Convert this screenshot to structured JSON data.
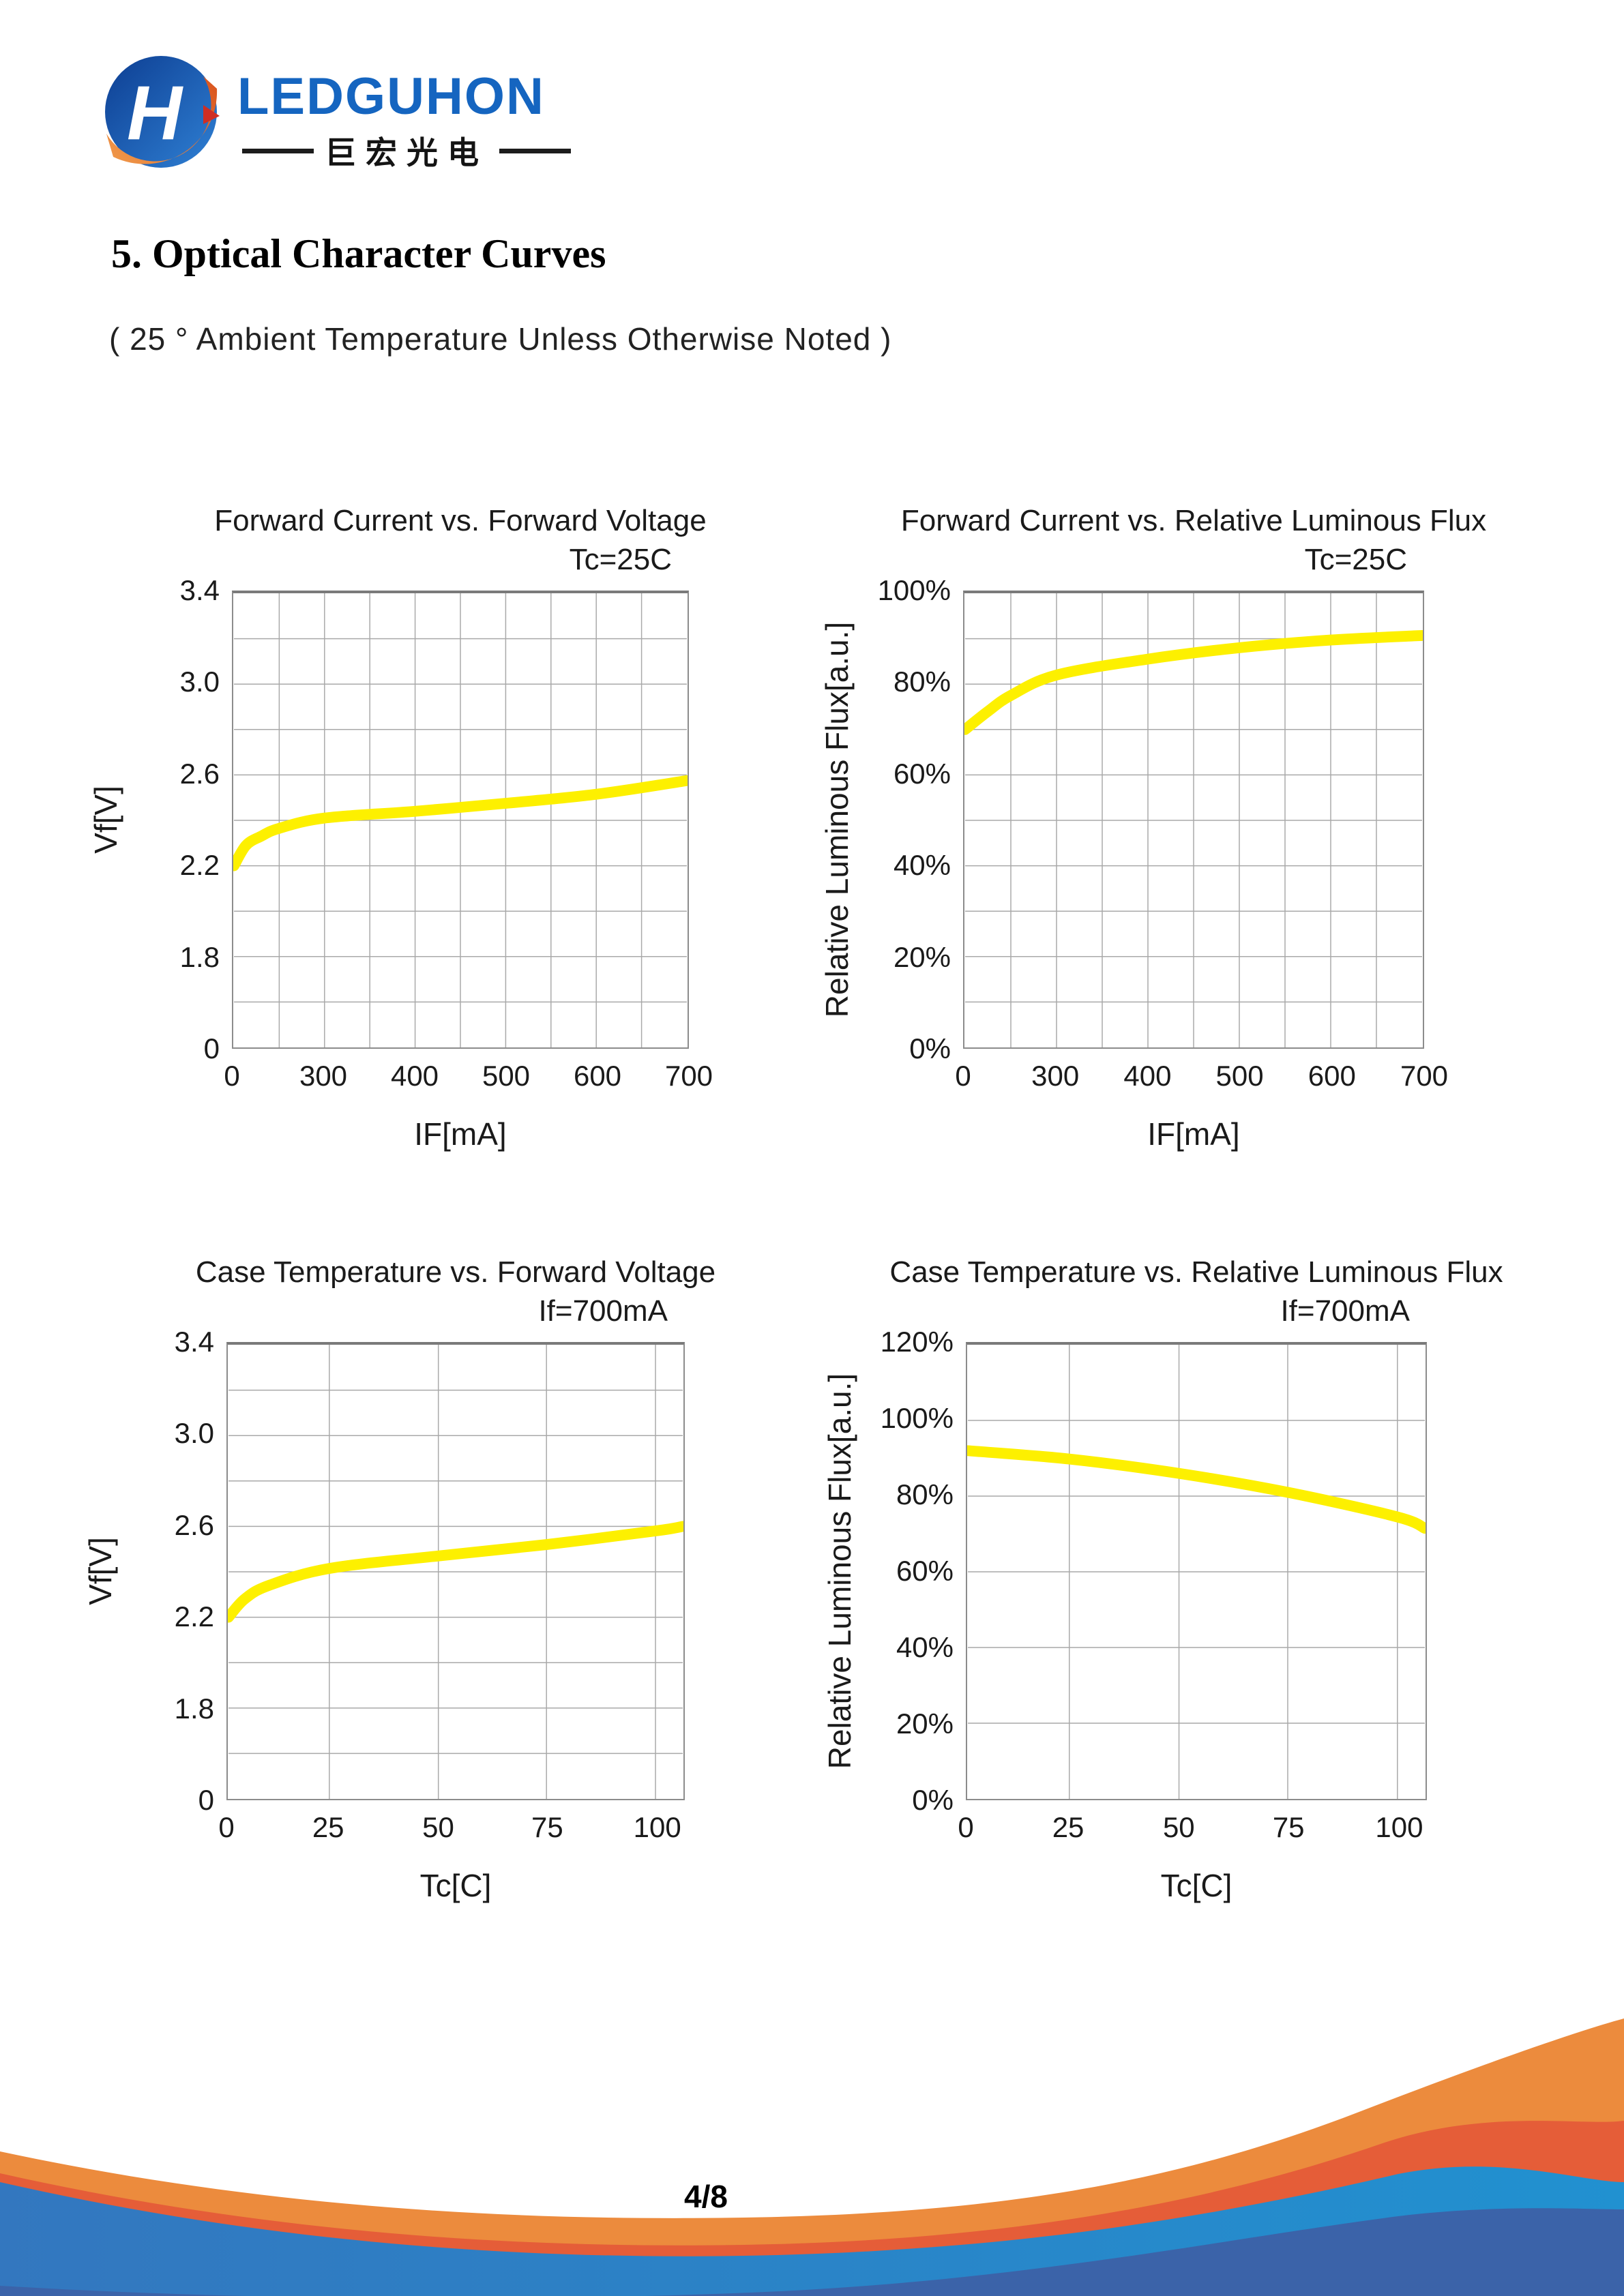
{
  "logo": {
    "brand": "LEDGUHON",
    "chinese": "巨宏光电"
  },
  "section": {
    "title_number": "5.",
    "title": " Optical Character Curves",
    "note": "( 25 °  Ambient Temperature Unless Otherwise Noted )"
  },
  "page": {
    "number_label": "4/8"
  },
  "colors": {
    "curve": "#fdf000",
    "grid": "#a9a9a9",
    "plot_border": "#7f7f7f",
    "text": "#1a1a1a",
    "brand_blue": "#1565c0",
    "logo_blue_dark": "#0d3e92",
    "logo_blue_light": "#2f80d4",
    "logo_orange_light": "#f09a4b",
    "logo_orange_dark": "#d9531e",
    "logo_red": "#cf2e24",
    "footer_orange": "#ec8b3d",
    "footer_red": "#e55d38",
    "footer_blue_left": "#3377bf",
    "footer_blue_right": "#2191d0",
    "footer_dark_blue": "#3b63a9"
  },
  "chart_data": [
    {
      "type": "line",
      "title": "Forward Current vs. Forward Voltage",
      "subtitle": "Tc=25C",
      "xlabel": "IF[mA]",
      "ylabel": "Vf[V]",
      "legend": [],
      "grid": "on",
      "x_ticks": [
        {
          "label": "0",
          "f": 0
        },
        {
          "label": "300",
          "f": 0.2
        },
        {
          "label": "400",
          "f": 0.4
        },
        {
          "label": "500",
          "f": 0.6
        },
        {
          "label": "600",
          "f": 0.8
        },
        {
          "label": "700",
          "f": 1
        }
      ],
      "y_ticks": [
        {
          "label": "3.4",
          "f": 0
        },
        {
          "label": "3.0",
          "f": 0.2
        },
        {
          "label": "2.6",
          "f": 0.4
        },
        {
          "label": "2.2",
          "f": 0.6
        },
        {
          "label": "1.8",
          "f": 0.8
        },
        {
          "label": "0",
          "f": 1
        }
      ],
      "x_grid": [
        0,
        0.1,
        0.2,
        0.3,
        0.4,
        0.5,
        0.6,
        0.7,
        0.8,
        0.9,
        1
      ],
      "y_rows": 10,
      "x_anchors": [
        [
          0,
          0
        ],
        [
          300,
          0.2
        ],
        [
          400,
          0.4
        ],
        [
          500,
          0.6
        ],
        [
          600,
          0.8
        ],
        [
          700,
          1
        ]
      ],
      "y_anchors": [
        [
          3.4,
          0
        ],
        [
          3.0,
          0.2
        ],
        [
          2.6,
          0.4
        ],
        [
          2.2,
          0.6
        ],
        [
          1.8,
          0.8
        ],
        [
          0,
          1
        ]
      ],
      "points": [
        [
          0,
          2.2
        ],
        [
          40,
          2.29
        ],
        [
          90,
          2.33
        ],
        [
          150,
          2.365
        ],
        [
          300,
          2.41
        ],
        [
          400,
          2.44
        ],
        [
          500,
          2.475
        ],
        [
          600,
          2.515
        ],
        [
          700,
          2.575
        ]
      ]
    },
    {
      "type": "line",
      "title": "Forward Current vs. Relative Luminous Flux",
      "subtitle": "Tc=25C",
      "xlabel": "IF[mA]",
      "ylabel": "Relative Luminous Flux[a.u.]",
      "legend": [],
      "grid": "on",
      "x_ticks": [
        {
          "label": "0",
          "f": 0
        },
        {
          "label": "300",
          "f": 0.2
        },
        {
          "label": "400",
          "f": 0.4
        },
        {
          "label": "500",
          "f": 0.6
        },
        {
          "label": "600",
          "f": 0.8
        },
        {
          "label": "700",
          "f": 1
        }
      ],
      "y_ticks": [
        {
          "label": "100%",
          "f": 0
        },
        {
          "label": "80%",
          "f": 0.2
        },
        {
          "label": "60%",
          "f": 0.4
        },
        {
          "label": "40%",
          "f": 0.6
        },
        {
          "label": "20%",
          "f": 0.8
        },
        {
          "label": "0%",
          "f": 1
        }
      ],
      "x_grid": [
        0,
        0.1,
        0.2,
        0.3,
        0.4,
        0.5,
        0.6,
        0.7,
        0.8,
        0.9,
        1
      ],
      "y_rows": 10,
      "x_anchors": [
        [
          0,
          0
        ],
        [
          300,
          0.2
        ],
        [
          400,
          0.4
        ],
        [
          500,
          0.6
        ],
        [
          600,
          0.8
        ],
        [
          700,
          1
        ]
      ],
      "y_anchors": [
        [
          100,
          0
        ],
        [
          0,
          1
        ]
      ],
      "points": [
        [
          0,
          70
        ],
        [
          75,
          74
        ],
        [
          150,
          77.5
        ],
        [
          300,
          82
        ],
        [
          400,
          85.5
        ],
        [
          500,
          88
        ],
        [
          600,
          89.7
        ],
        [
          700,
          90.7
        ]
      ]
    },
    {
      "type": "line",
      "title": "Case Temperature vs. Forward Voltage",
      "subtitle": "If=700mA",
      "xlabel": "Tc[C]",
      "ylabel": "Vf[V]",
      "legend": [],
      "grid": "on",
      "x_ticks": [
        {
          "label": "0",
          "f": 0
        },
        {
          "label": "25",
          "f": 0.222
        },
        {
          "label": "50",
          "f": 0.462
        },
        {
          "label": "75",
          "f": 0.7
        },
        {
          "label": "100",
          "f": 0.94
        }
      ],
      "y_ticks": [
        {
          "label": "3.4",
          "f": 0
        },
        {
          "label": "3.0",
          "f": 0.2
        },
        {
          "label": "2.6",
          "f": 0.4
        },
        {
          "label": "2.2",
          "f": 0.6
        },
        {
          "label": "1.8",
          "f": 0.8
        },
        {
          "label": "0",
          "f": 1
        }
      ],
      "x_grid": [
        0,
        0.222,
        0.462,
        0.7,
        0.94,
        1
      ],
      "y_rows": 10,
      "x_anchors": [
        [
          0,
          0
        ],
        [
          25,
          0.222
        ],
        [
          50,
          0.462
        ],
        [
          75,
          0.7
        ],
        [
          100,
          0.94
        ],
        [
          106,
          1
        ]
      ],
      "y_anchors": [
        [
          3.4,
          0
        ],
        [
          3.0,
          0.2
        ],
        [
          2.6,
          0.4
        ],
        [
          2.2,
          0.6
        ],
        [
          1.8,
          0.8
        ],
        [
          0,
          1
        ]
      ],
      "points": [
        [
          0,
          2.2
        ],
        [
          4,
          2.28
        ],
        [
          10,
          2.34
        ],
        [
          25,
          2.415
        ],
        [
          50,
          2.47
        ],
        [
          75,
          2.52
        ],
        [
          100,
          2.58
        ],
        [
          106,
          2.6
        ]
      ]
    },
    {
      "type": "line",
      "title": "Case Temperature vs. Relative Luminous Flux",
      "subtitle": "If=700mA",
      "xlabel": "Tc[C]",
      "ylabel": "Relative Luminous Flux[a.u.]",
      "legend": [],
      "grid": "on",
      "x_ticks": [
        {
          "label": "0",
          "f": 0
        },
        {
          "label": "25",
          "f": 0.222
        },
        {
          "label": "50",
          "f": 0.462
        },
        {
          "label": "75",
          "f": 0.7
        },
        {
          "label": "100",
          "f": 0.94
        }
      ],
      "y_ticks": [
        {
          "label": "120%",
          "f": 0
        },
        {
          "label": "100%",
          "f": 0.1667
        },
        {
          "label": "80%",
          "f": 0.3333
        },
        {
          "label": "60%",
          "f": 0.5
        },
        {
          "label": "40%",
          "f": 0.6667
        },
        {
          "label": "20%",
          "f": 0.8333
        },
        {
          "label": "0%",
          "f": 1
        }
      ],
      "x_grid": [
        0,
        0.222,
        0.462,
        0.7,
        0.94,
        1
      ],
      "y_rows": 6,
      "x_anchors": [
        [
          0,
          0
        ],
        [
          25,
          0.222
        ],
        [
          50,
          0.462
        ],
        [
          75,
          0.7
        ],
        [
          100,
          0.94
        ],
        [
          106,
          1
        ]
      ],
      "y_anchors": [
        [
          120,
          0
        ],
        [
          0,
          1
        ]
      ],
      "points": [
        [
          0,
          92
        ],
        [
          25,
          89.8
        ],
        [
          50,
          86
        ],
        [
          75,
          81
        ],
        [
          100,
          74.5
        ],
        [
          106,
          71.5
        ]
      ]
    }
  ]
}
